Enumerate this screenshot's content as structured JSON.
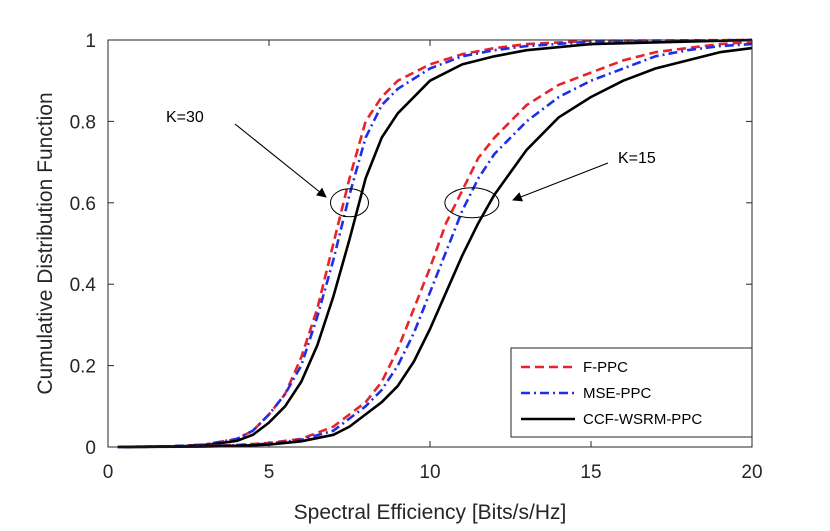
{
  "chart_data": {
    "type": "line",
    "title": "",
    "xlabel": "Spectral Efficiency [Bits/s/Hz]",
    "ylabel": "Cumulative Distribution Function",
    "xlim": [
      0,
      20
    ],
    "ylim": [
      0,
      1
    ],
    "grid": false,
    "xticks": [
      0,
      5,
      10,
      15,
      20
    ],
    "yticks": [
      0,
      0.2,
      0.4,
      0.6,
      0.8,
      1
    ],
    "xtick_labels": [
      "0",
      "5",
      "10",
      "15",
      "20"
    ],
    "ytick_labels": [
      "0",
      "0.2",
      "0.4",
      "0.6",
      "0.8",
      "1"
    ],
    "legend": {
      "location": "bottom-right",
      "entries": [
        "F-PPC",
        "MSE-PPC",
        "CCF-WSRM-PPC"
      ]
    },
    "annotations": [
      {
        "text": "K=30",
        "points_to": [
          7.5,
          0.6
        ]
      },
      {
        "text": "K=15",
        "points_to": [
          11.3,
          0.6
        ]
      }
    ],
    "series": [
      {
        "name": "F-PPC",
        "group": "K=30",
        "color": "#e8242a",
        "style": "dashed",
        "x": [
          0.3,
          2,
          3,
          4,
          4.5,
          5,
          5.5,
          6,
          6.5,
          7,
          7.5,
          8,
          8.5,
          9,
          10,
          11,
          12,
          13,
          15,
          20
        ],
        "y": [
          0,
          0.002,
          0.006,
          0.02,
          0.04,
          0.08,
          0.13,
          0.22,
          0.34,
          0.5,
          0.66,
          0.8,
          0.86,
          0.9,
          0.94,
          0.965,
          0.98,
          0.99,
          0.998,
          1.0
        ]
      },
      {
        "name": "MSE-PPC",
        "group": "K=30",
        "color": "#1f2ee8",
        "style": "dashdot",
        "x": [
          0.3,
          2,
          3,
          4,
          4.5,
          5,
          5.5,
          6,
          6.5,
          7,
          7.5,
          8,
          8.5,
          9,
          10,
          11,
          12,
          13,
          15,
          20
        ],
        "y": [
          0,
          0.002,
          0.006,
          0.02,
          0.04,
          0.08,
          0.13,
          0.2,
          0.32,
          0.46,
          0.62,
          0.76,
          0.84,
          0.88,
          0.93,
          0.96,
          0.975,
          0.985,
          0.996,
          1.0
        ]
      },
      {
        "name": "CCF-WSRM-PPC",
        "group": "K=30",
        "color": "#000000",
        "style": "solid",
        "x": [
          0.3,
          2,
          3,
          4,
          4.5,
          5,
          5.5,
          6,
          6.5,
          7,
          7.5,
          8,
          8.5,
          9,
          10,
          11,
          12,
          13,
          15,
          20
        ],
        "y": [
          0,
          0.001,
          0.004,
          0.015,
          0.03,
          0.06,
          0.1,
          0.16,
          0.25,
          0.37,
          0.51,
          0.66,
          0.76,
          0.82,
          0.9,
          0.94,
          0.96,
          0.975,
          0.99,
          1.0
        ]
      },
      {
        "name": "F-PPC",
        "group": "K=15",
        "color": "#e8242a",
        "style": "dashed",
        "x": [
          0.5,
          3,
          4,
          5,
          6,
          7,
          7.5,
          8,
          8.5,
          9,
          9.5,
          10,
          10.5,
          11,
          11.5,
          12,
          13,
          14,
          15,
          16,
          17,
          18,
          19,
          20
        ],
        "y": [
          0,
          0.002,
          0.005,
          0.01,
          0.02,
          0.05,
          0.08,
          0.11,
          0.16,
          0.24,
          0.34,
          0.44,
          0.55,
          0.63,
          0.71,
          0.76,
          0.84,
          0.89,
          0.92,
          0.95,
          0.97,
          0.98,
          0.99,
          0.995
        ]
      },
      {
        "name": "MSE-PPC",
        "group": "K=15",
        "color": "#1f2ee8",
        "style": "dashdot",
        "x": [
          0.5,
          3,
          4,
          5,
          6,
          7,
          7.5,
          8,
          8.5,
          9,
          9.5,
          10,
          10.5,
          11,
          11.5,
          12,
          13,
          14,
          15,
          16,
          17,
          18,
          19,
          20
        ],
        "y": [
          0,
          0.002,
          0.004,
          0.008,
          0.018,
          0.04,
          0.07,
          0.1,
          0.14,
          0.2,
          0.28,
          0.38,
          0.48,
          0.58,
          0.66,
          0.72,
          0.8,
          0.86,
          0.9,
          0.93,
          0.96,
          0.975,
          0.985,
          0.99
        ]
      },
      {
        "name": "CCF-WSRM-PPC",
        "group": "K=15",
        "color": "#000000",
        "style": "solid",
        "x": [
          0.5,
          3,
          4,
          5,
          6,
          7,
          7.5,
          8,
          8.5,
          9,
          9.5,
          10,
          10.5,
          11,
          11.5,
          12,
          13,
          14,
          15,
          16,
          17,
          18,
          19,
          20
        ],
        "y": [
          0,
          0.001,
          0.003,
          0.006,
          0.014,
          0.03,
          0.05,
          0.08,
          0.11,
          0.15,
          0.21,
          0.29,
          0.38,
          0.47,
          0.55,
          0.62,
          0.73,
          0.81,
          0.86,
          0.9,
          0.93,
          0.95,
          0.97,
          0.98
        ]
      }
    ]
  }
}
